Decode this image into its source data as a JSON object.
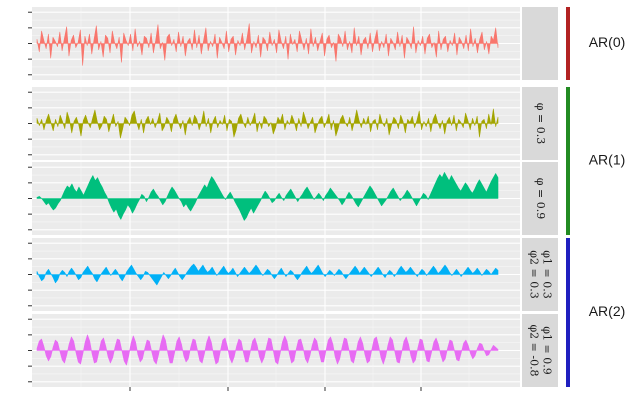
{
  "chart_data": {
    "type": "area",
    "title": "",
    "xlabel": "",
    "ylabel": "",
    "x_range": [
      1,
      200
    ],
    "grid": true,
    "legend": "none",
    "panels": [
      {
        "name": "AR(0)",
        "strip_lines": [],
        "color": "#F8766D",
        "ylim": [
          -3.5,
          3.5
        ],
        "values": [
          0.4,
          -0.8,
          1.2,
          0.3,
          -0.5,
          0.9,
          -1.4,
          0.6,
          0.2,
          -0.3,
          1.1,
          -0.7,
          0.5,
          1.6,
          -1.2,
          0.3,
          0.8,
          -0.4,
          0.1,
          1.3,
          -2.1,
          0.7,
          -0.2,
          0.9,
          -1.0,
          0.4,
          1.7,
          -0.6,
          0.2,
          -1.3,
          0.8,
          0.5,
          -0.9,
          1.2,
          0.1,
          -0.5,
          0.6,
          -1.8,
          1.0,
          0.3,
          -0.2,
          0.9,
          -0.7,
          1.4,
          -0.3,
          0.2,
          -1.1,
          0.7,
          0.5,
          -0.4,
          1.0,
          -0.9,
          0.3,
          1.8,
          -0.5,
          0.1,
          -1.6,
          0.6,
          0.9,
          -0.2,
          0.4,
          -0.8,
          1.1,
          -0.3,
          0.7,
          -1.2,
          0.2,
          0.5,
          -0.6,
          1.3,
          -0.4,
          0.8,
          -1.0,
          0.3,
          1.5,
          -0.7,
          0.2,
          -0.3,
          0.9,
          -1.4,
          0.6,
          0.1,
          -0.5,
          1.2,
          -0.8,
          0.4,
          0.7,
          -1.1,
          0.3,
          -0.2,
          1.0,
          -0.6,
          0.5,
          1.9,
          -0.9,
          0.2,
          -0.4,
          0.8,
          -1.3,
          0.6,
          0.3,
          -0.7,
          1.1,
          -0.2,
          0.4,
          -0.9,
          1.3,
          0.2,
          -0.5,
          0.7,
          -1.5,
          0.9,
          -0.1,
          0.4,
          -0.8,
          1.2,
          0.3,
          -0.6,
          0.5,
          -1.0,
          1.4,
          -0.3,
          0.6,
          -0.7,
          0.2,
          1.0,
          -1.2,
          0.4,
          0.8,
          -0.4,
          0.1,
          -1.7,
          0.9,
          0.5,
          -0.3,
          1.2,
          -0.6,
          0.2,
          -0.9,
          1.5,
          -0.2,
          0.7,
          -1.1,
          0.3,
          0.6,
          -0.5,
          1.0,
          -0.8,
          0.4,
          1.3,
          -0.7,
          0.2,
          -0.4,
          0.9,
          -1.2,
          0.5,
          0.1,
          -0.6,
          1.1,
          -0.3,
          0.8,
          -1.4,
          0.6,
          0.2,
          -0.5,
          1.6,
          -0.9,
          0.3,
          -0.2,
          0.7,
          -1.0,
          0.5,
          0.9,
          -0.4,
          0.1,
          -1.3,
          1.2,
          -0.6,
          0.4,
          0.7,
          -0.8,
          0.3,
          -0.2,
          1.0,
          -1.1,
          0.6,
          0.2,
          -0.5,
          0.8,
          -0.7,
          1.4,
          -0.3,
          0.5,
          -0.9,
          0.4,
          1.1,
          -0.6,
          0.2,
          -1.0,
          0.7,
          0.3,
          1.5,
          -0.4
        ]
      },
      {
        "name": "AR(1)",
        "strip_lines": [
          "φ = 0.3"
        ],
        "color": "#A3A500",
        "ylim": [
          -3.5,
          3.5
        ],
        "values": [
          0.5,
          -0.2,
          0.4,
          -0.6,
          0.3,
          0.9,
          0.1,
          -0.7,
          0.4,
          -0.3,
          0.8,
          0.2,
          -0.5,
          1.1,
          0.4,
          -0.9,
          0.2,
          0.6,
          -0.1,
          -1.2,
          0.3,
          0.8,
          0.1,
          -0.4,
          0.5,
          1.3,
          0.2,
          -0.6,
          -0.2,
          0.7,
          0.4,
          -0.8,
          0.1,
          0.9,
          -0.3,
          0.2,
          -1.4,
          -0.5,
          0.6,
          0.3,
          -0.2,
          0.8,
          1.2,
          0.1,
          -0.6,
          0.4,
          -0.9,
          0.3,
          0.7,
          -0.1,
          0.5,
          -0.4,
          0.2,
          1.0,
          -0.7,
          -0.3,
          0.6,
          0.2,
          -0.8,
          0.4,
          0.9,
          0.1,
          -0.5,
          0.3,
          -1.1,
          0.2,
          0.6,
          -0.2,
          0.8,
          0.4,
          -0.6,
          0.1,
          1.2,
          -0.3,
          0.5,
          -0.9,
          0.2,
          0.7,
          -0.4,
          0.3,
          -0.1,
          0.8,
          -0.7,
          0.4,
          0.2,
          -1.3,
          -0.6,
          0.5,
          0.9,
          0.1,
          -0.4,
          0.6,
          -0.2,
          0.3,
          1.0,
          -0.8,
          0.2,
          -0.5,
          0.7,
          0.4,
          -0.3,
          0.1,
          -1.0,
          -0.4,
          0.6,
          0.2,
          0.9,
          -0.6,
          0.3,
          -0.1,
          0.8,
          0.2,
          -0.7,
          0.5,
          -0.3,
          1.1,
          0.4,
          -0.5,
          0.1,
          0.6,
          -0.9,
          -0.2,
          0.4,
          0.7,
          -0.4,
          0.2,
          0.9,
          -0.6,
          0.3,
          -1.2,
          -0.5,
          0.4,
          0.8,
          0.1,
          -0.3,
          0.6,
          -0.7,
          0.2,
          1.3,
          0.3,
          -0.4,
          0.5,
          -0.1,
          0.7,
          -0.8,
          0.2,
          0.4,
          -0.6,
          0.9,
          0.1,
          -0.3,
          0.5,
          -1.1,
          -0.2,
          0.6,
          0.3,
          -0.5,
          0.8,
          0.2,
          -0.9,
          0.4,
          0.1,
          0.7,
          -0.4,
          0.3,
          1.2,
          -0.6,
          0.2,
          -0.3,
          0.5,
          -0.8,
          0.4,
          0.9,
          0.1,
          -0.5,
          0.3,
          -1.0,
          0.2,
          0.6,
          -0.2,
          0.8,
          -0.7,
          0.4,
          0.1,
          -0.4,
          1.0,
          0.3,
          -0.6,
          0.5,
          -0.2,
          0.7,
          -1.3,
          0.2,
          0.4,
          -0.5,
          0.9,
          -0.1,
          1.4,
          -0.3,
          0.6
        ]
      },
      {
        "name": "AR(1)",
        "strip_lines": [
          "φ = 0.9"
        ],
        "color": "#00BF7D",
        "ylim": [
          -3.5,
          3.5
        ],
        "values": [
          0.1,
          0.2,
          0.0,
          -0.3,
          -0.6,
          -0.4,
          -0.8,
          -1.1,
          -0.9,
          -0.5,
          -0.2,
          0.3,
          0.8,
          1.2,
          1.0,
          1.4,
          0.9,
          0.6,
          1.1,
          0.7,
          0.3,
          0.8,
          1.3,
          1.8,
          2.2,
          1.7,
          2.0,
          1.5,
          1.1,
          0.6,
          0.2,
          -0.4,
          -0.9,
          -1.3,
          -1.0,
          -1.6,
          -2.0,
          -1.5,
          -1.1,
          -0.6,
          -0.9,
          -1.4,
          -1.0,
          -0.5,
          -0.1,
          0.4,
          0.2,
          -0.3,
          0.1,
          0.6,
          0.9,
          0.5,
          0.2,
          -0.2,
          -0.6,
          -0.3,
          0.2,
          0.7,
          1.1,
          0.8,
          0.4,
          0.0,
          -0.3,
          -0.8,
          -0.5,
          -0.9,
          -1.2,
          -0.8,
          -0.4,
          0.1,
          0.5,
          0.9,
          1.3,
          1.0,
          1.6,
          2.1,
          1.8,
          1.4,
          1.0,
          0.6,
          0.2,
          -0.1,
          0.3,
          0.6,
          0.2,
          -0.3,
          -0.7,
          -1.1,
          -1.6,
          -2.1,
          -1.8,
          -1.3,
          -0.9,
          -1.4,
          -1.0,
          -0.6,
          -0.2,
          0.3,
          0.7,
          0.4,
          0.0,
          -0.4,
          -0.2,
          0.2,
          0.5,
          0.1,
          -0.2,
          0.3,
          0.6,
          0.9,
          0.5,
          0.1,
          -0.3,
          0.1,
          0.4,
          0.8,
          1.1,
          0.7,
          0.3,
          -0.1,
          0.2,
          0.5,
          0.2,
          -0.2,
          0.3,
          0.6,
          1.0,
          0.7,
          0.4,
          0.1,
          -0.2,
          -0.6,
          -0.3,
          0.2,
          0.6,
          0.3,
          -0.1,
          -0.5,
          -0.8,
          -0.4,
          0.0,
          0.4,
          0.8,
          1.2,
          0.9,
          0.5,
          0.1,
          -0.3,
          -0.7,
          -0.4,
          -0.1,
          0.3,
          0.7,
          1.0,
          0.6,
          0.2,
          -0.2,
          0.1,
          0.4,
          0.8,
          0.5,
          0.1,
          -0.3,
          -0.7,
          -0.3,
          0.1,
          0.5,
          0.3,
          -0.1,
          0.4,
          0.9,
          1.4,
          1.9,
          2.3,
          2.0,
          2.5,
          2.1,
          1.7,
          2.2,
          1.8,
          1.4,
          1.0,
          0.7,
          1.1,
          1.5,
          1.2,
          0.8,
          0.5,
          0.9,
          1.4,
          1.8,
          1.4,
          1.0,
          0.6,
          1.1,
          1.6,
          2.0,
          2.4,
          2.0
        ]
      },
      {
        "name": "AR(2)",
        "strip_lines": [
          "φ1 = 0.3",
          "φ2 = 0.3"
        ],
        "color": "#00B0F6",
        "ylim": [
          -3.5,
          3.5
        ],
        "values": [
          0.3,
          -0.2,
          -0.6,
          -0.4,
          0.2,
          0.5,
          0.1,
          -0.3,
          -0.8,
          -0.5,
          0.1,
          0.4,
          0.2,
          -0.2,
          0.3,
          0.6,
          0.3,
          -0.1,
          -0.5,
          -0.3,
          0.2,
          0.5,
          0.8,
          0.4,
          0.1,
          -0.4,
          -0.7,
          -0.3,
          0.1,
          0.4,
          0.7,
          0.3,
          -0.1,
          0.2,
          0.5,
          0.2,
          -0.3,
          -0.6,
          -0.2,
          0.3,
          0.6,
          0.9,
          0.5,
          0.1,
          -0.2,
          -0.5,
          -0.2,
          0.3,
          0.2,
          -0.1,
          -0.4,
          -0.7,
          -1.0,
          -0.6,
          -0.2,
          0.2,
          -0.1,
          -0.4,
          -0.1,
          0.3,
          0.6,
          0.2,
          -0.2,
          -0.5,
          -0.2,
          0.2,
          0.5,
          0.8,
          1.0,
          0.7,
          0.3,
          0.6,
          0.9,
          0.5,
          0.2,
          0.4,
          0.7,
          0.3,
          -0.1,
          0.2,
          0.5,
          0.8,
          0.4,
          0.1,
          0.3,
          0.6,
          0.2,
          -0.2,
          0.1,
          0.4,
          0.7,
          0.4,
          0.1,
          0.3,
          0.6,
          0.9,
          0.6,
          0.2,
          -0.1,
          0.2,
          0.5,
          0.3,
          -0.1,
          -0.4,
          -0.1,
          0.3,
          0.6,
          0.2,
          -0.2,
          0.1,
          0.4,
          0.2,
          -0.2,
          -0.5,
          -0.2,
          0.2,
          0.5,
          0.8,
          0.4,
          0.1,
          0.3,
          0.6,
          0.9,
          0.5,
          0.1,
          -0.2,
          0.1,
          0.4,
          0.2,
          -0.1,
          0.2,
          0.5,
          0.3,
          -0.1,
          -0.4,
          -0.1,
          0.2,
          0.5,
          0.8,
          0.5,
          0.1,
          0.4,
          0.7,
          0.4,
          0.1,
          -0.2,
          0.1,
          0.4,
          0.7,
          0.4,
          0.0,
          -0.3,
          0.1,
          0.4,
          0.2,
          -0.2,
          0.1,
          0.5,
          0.8,
          0.5,
          0.2,
          0.4,
          0.7,
          0.4,
          0.1,
          -0.2,
          0.2,
          0.5,
          0.3,
          -0.1,
          0.2,
          0.5,
          0.8,
          0.5,
          0.1,
          0.3,
          0.6,
          0.9,
          0.6,
          0.2,
          -0.1,
          0.2,
          0.5,
          0.2,
          -0.2,
          0.1,
          0.4,
          0.7,
          0.4,
          0.1,
          0.3,
          0.6,
          0.3,
          -0.1,
          0.2,
          0.5,
          0.3,
          0.0,
          0.3,
          0.6,
          0.4
        ]
      },
      {
        "name": "AR(2)",
        "strip_lines": [
          "φ1 = 0.9",
          "φ2 = -0.8"
        ],
        "color": "#E76BF3",
        "ylim": [
          -3.5,
          3.5
        ],
        "values": [
          0.2,
          0.9,
          1.1,
          0.4,
          -0.5,
          -1.0,
          -0.6,
          0.3,
          1.0,
          0.8,
          -0.1,
          -0.9,
          -1.2,
          -0.4,
          0.6,
          1.3,
          0.9,
          -0.2,
          -1.1,
          -1.3,
          -0.3,
          0.8,
          1.5,
          0.9,
          -0.3,
          -1.2,
          -1.1,
          -0.1,
          0.9,
          1.2,
          0.4,
          -0.6,
          -1.2,
          -0.7,
          0.3,
          1.1,
          1.0,
          0.0,
          -1.0,
          -1.4,
          -0.5,
          0.7,
          1.4,
          0.8,
          -0.4,
          -1.1,
          -0.8,
          0.2,
          1.0,
          0.9,
          -0.1,
          -1.0,
          -1.3,
          -0.4,
          0.7,
          1.5,
          1.0,
          -0.2,
          -1.2,
          -1.2,
          -0.2,
          0.9,
          1.3,
          0.6,
          -0.5,
          -1.1,
          -0.8,
          0.3,
          1.1,
          1.0,
          0.0,
          -1.0,
          -1.2,
          -0.3,
          0.8,
          1.4,
          0.8,
          -0.4,
          -1.3,
          -1.1,
          0.0,
          1.0,
          1.2,
          0.4,
          -0.7,
          -1.2,
          -0.6,
          0.4,
          1.1,
          0.9,
          -0.2,
          -1.1,
          -1.1,
          -0.1,
          0.9,
          1.2,
          0.5,
          -0.6,
          -1.2,
          -0.7,
          0.3,
          1.2,
          1.1,
          0.0,
          -1.1,
          -1.3,
          -0.3,
          0.8,
          1.4,
          0.9,
          -0.3,
          -1.2,
          -1.0,
          0.1,
          1.0,
          1.1,
          0.3,
          -0.8,
          -1.2,
          -0.5,
          0.5,
          1.2,
          0.9,
          -0.2,
          -1.1,
          -1.1,
          0.0,
          1.0,
          1.3,
          0.6,
          -0.6,
          -1.3,
          -0.8,
          0.3,
          1.2,
          1.1,
          0.1,
          -1.0,
          -1.2,
          -0.3,
          0.8,
          1.3,
          0.7,
          -0.4,
          -1.2,
          -1.0,
          0.1,
          1.1,
          1.3,
          0.4,
          -0.7,
          -1.3,
          -0.6,
          0.5,
          1.3,
          1.0,
          -0.1,
          -1.1,
          -1.2,
          -0.2,
          0.9,
          1.3,
          0.6,
          -0.5,
          -1.2,
          -0.9,
          0.2,
          1.1,
          1.0,
          0.0,
          -1.0,
          -1.1,
          -0.2,
          0.8,
          1.2,
          0.6,
          -0.4,
          -1.1,
          -0.8,
          0.2,
          1.0,
          0.9,
          0.0,
          -0.9,
          -1.0,
          -0.2,
          0.7,
          1.0,
          0.5,
          -0.3,
          -0.8,
          -0.5,
          0.2,
          0.7,
          0.6,
          0.0,
          -0.5,
          -0.4,
          0.1,
          0.5,
          0.3,
          0.1
        ]
      }
    ],
    "groups": [
      {
        "label": "AR(0)",
        "color": "#B22222",
        "panels": [
          0
        ]
      },
      {
        "label": "AR(1)",
        "color": "#228B22",
        "panels": [
          1,
          2
        ]
      },
      {
        "label": "AR(2)",
        "color": "#1F1FBF",
        "panels": [
          3,
          4
        ]
      }
    ]
  }
}
